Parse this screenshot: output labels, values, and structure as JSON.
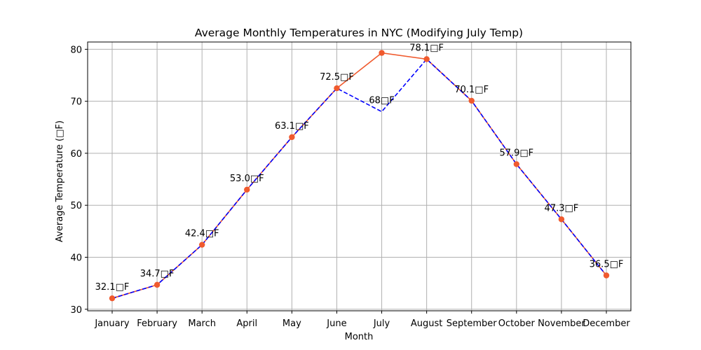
{
  "chart_data": {
    "type": "line",
    "title": "Average Monthly Temperatures in NYC (Modifying July Temp)",
    "xlabel": "Month",
    "ylabel": "Average Temperature (□F)",
    "categories": [
      "January",
      "February",
      "March",
      "April",
      "May",
      "June",
      "July",
      "August",
      "September",
      "October",
      "November",
      "December"
    ],
    "ylim": [
      29.7,
      81.4
    ],
    "yticks": [
      30,
      40,
      50,
      60,
      70,
      80
    ],
    "grid": true,
    "series": [
      {
        "values": [
          32.1,
          34.7,
          42.4,
          53.0,
          63.1,
          72.5,
          79.3,
          78.1,
          70.1,
          57.9,
          47.3,
          36.5
        ],
        "color": "#f05a2e",
        "marker": "circle",
        "line_style": "solid"
      },
      {
        "values": [
          32.1,
          34.7,
          42.4,
          53.0,
          63.1,
          72.5,
          68,
          78.1,
          70.1,
          57.9,
          47.3,
          36.5
        ],
        "color": "#0000ff",
        "marker": "none",
        "line_style": "dashed"
      }
    ],
    "annotations": [
      {
        "month": "January",
        "value": 32.1,
        "text": "32.1□F"
      },
      {
        "month": "February",
        "value": 34.7,
        "text": "34.7□F"
      },
      {
        "month": "March",
        "value": 42.4,
        "text": "42.4□F"
      },
      {
        "month": "April",
        "value": 53.0,
        "text": "53.0□F"
      },
      {
        "month": "May",
        "value": 63.1,
        "text": "63.1□F"
      },
      {
        "month": "June",
        "value": 72.5,
        "text": "72.5□F"
      },
      {
        "month": "July",
        "value": 68,
        "text": "68□F"
      },
      {
        "month": "August",
        "value": 78.1,
        "text": "78.1□F"
      },
      {
        "month": "September",
        "value": 70.1,
        "text": "70.1□F"
      },
      {
        "month": "October",
        "value": 57.9,
        "text": "57.9□F"
      },
      {
        "month": "November",
        "value": 47.3,
        "text": "47.3□F"
      },
      {
        "month": "December",
        "value": 36.5,
        "text": "36.5□F"
      }
    ]
  }
}
